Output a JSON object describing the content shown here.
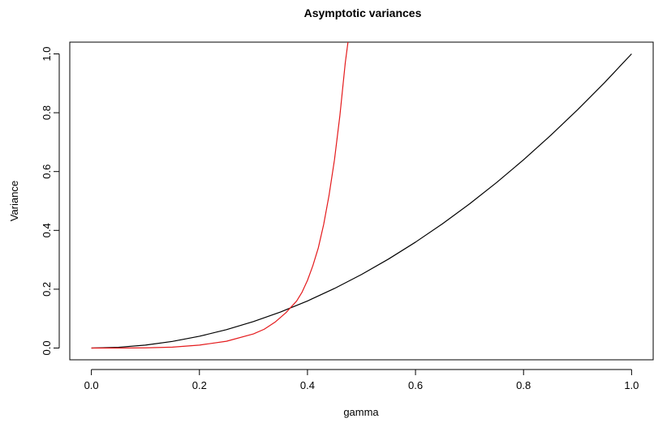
{
  "chart_data": {
    "type": "line",
    "title": "Asymptotic variances",
    "xlabel": "gamma",
    "ylabel": "Variance",
    "xlim": [
      -0.04,
      1.04
    ],
    "ylim": [
      -0.04,
      1.04
    ],
    "x_ticks": [
      "0.0",
      "0.2",
      "0.4",
      "0.6",
      "0.8",
      "1.0"
    ],
    "y_ticks": [
      "0.0",
      "0.2",
      "0.4",
      "0.6",
      "0.8",
      "1.0"
    ],
    "grid": false,
    "legend": "none",
    "series": [
      {
        "color": "#000000",
        "x": [
          0.0,
          0.05,
          0.1,
          0.15,
          0.2,
          0.25,
          0.3,
          0.35,
          0.4,
          0.45,
          0.5,
          0.55,
          0.6,
          0.65,
          0.7,
          0.75,
          0.8,
          0.85,
          0.9,
          0.95,
          1.0
        ],
        "values": [
          0.0,
          0.0025,
          0.01,
          0.0225,
          0.04,
          0.0625,
          0.09,
          0.1225,
          0.16,
          0.2025,
          0.25,
          0.3025,
          0.36,
          0.4225,
          0.49,
          0.5625,
          0.64,
          0.7225,
          0.81,
          0.9025,
          1.0
        ]
      },
      {
        "color": "#e41a1c",
        "x": [
          0.0,
          0.05,
          0.1,
          0.15,
          0.2,
          0.25,
          0.3,
          0.32,
          0.34,
          0.36,
          0.38,
          0.39,
          0.4,
          0.41,
          0.42,
          0.43,
          0.44,
          0.45,
          0.46,
          0.47,
          0.475
        ],
        "values": [
          0.0,
          0.0,
          0.0006,
          0.003,
          0.01,
          0.023,
          0.048,
          0.064,
          0.088,
          0.12,
          0.16,
          0.19,
          0.23,
          0.28,
          0.34,
          0.42,
          0.52,
          0.64,
          0.79,
          0.97,
          1.04
        ]
      }
    ]
  }
}
